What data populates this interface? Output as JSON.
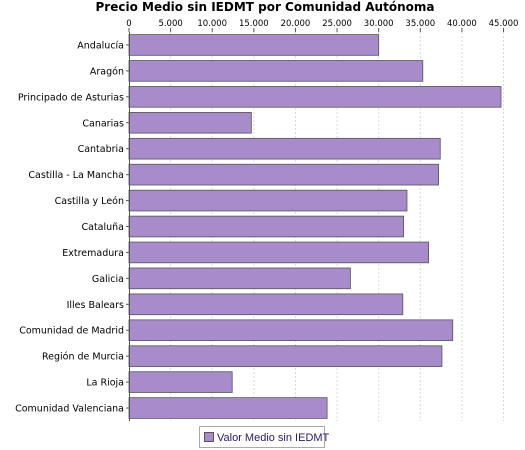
{
  "chart_data": {
    "type": "bar",
    "orientation": "horizontal",
    "title": "Precio Medio sin IEDMT por Comunidad Autónoma",
    "categories": [
      "Andalucía",
      "Aragón",
      "Principado de Asturias",
      "Canarias",
      "Cantabria",
      "Castilla - La Mancha",
      "Castilla y León",
      "Cataluña",
      "Extremadura",
      "Galicia",
      "Illes Balears",
      "Comunidad de Madrid",
      "Región de Murcia",
      "La Rioja",
      "Comunidad Valenciana"
    ],
    "series": [
      {
        "name": "Valor Medio sin IEDMT",
        "color": "#a78bcb",
        "values": [
          30000,
          35300,
          44700,
          14700,
          37400,
          37200,
          33400,
          33000,
          36000,
          26600,
          32900,
          38900,
          37600,
          12400,
          23800
        ]
      }
    ],
    "xlim": [
      0,
      46500
    ],
    "ticks": [
      0,
      5000,
      10000,
      15000,
      20000,
      25000,
      30000,
      35000,
      40000,
      45000
    ],
    "tick_labels": [
      "0",
      "5.000",
      "10.000",
      "15.000",
      "20.000",
      "25.000",
      "30.000",
      "35.000",
      "40.000",
      "45.000"
    ],
    "grid": true,
    "legend": "bottom-center"
  }
}
